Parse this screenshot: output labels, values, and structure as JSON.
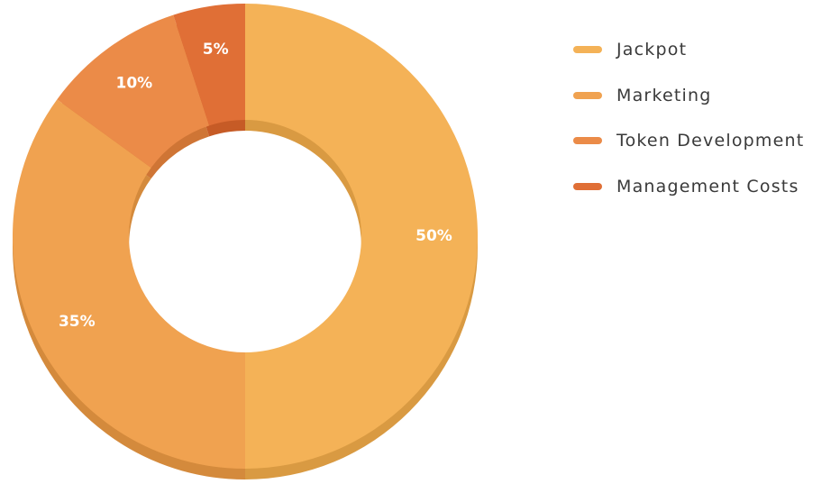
{
  "chart_data": {
    "type": "pie",
    "style": "donut",
    "categories": [
      "Jackpot",
      "Marketing",
      "Token Development",
      "Management Costs"
    ],
    "values": [
      50,
      35,
      10,
      5
    ],
    "labels": [
      "50%",
      "35%",
      "10%",
      "5%"
    ],
    "colors": [
      "#F4B257",
      "#F0A250",
      "#EB8B48",
      "#E06F36"
    ],
    "shadow_colors": [
      "#D99A42",
      "#D48A3C",
      "#CF7535",
      "#C65B26"
    ],
    "title": "",
    "legend_position": "right"
  }
}
